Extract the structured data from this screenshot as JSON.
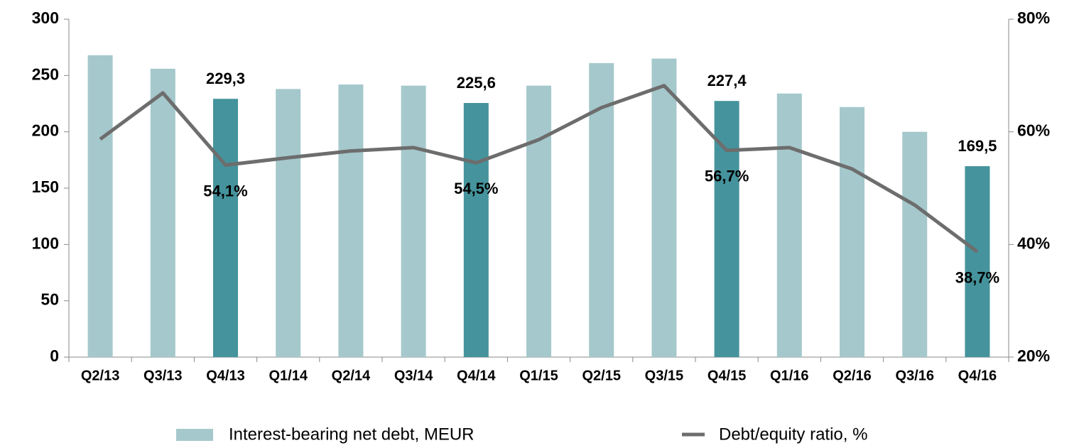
{
  "chart_data": {
    "type": "bar-line",
    "categories": [
      "Q2/13",
      "Q3/13",
      "Q4/13",
      "Q1/14",
      "Q2/14",
      "Q3/14",
      "Q4/14",
      "Q1/15",
      "Q2/15",
      "Q3/15",
      "Q4/15",
      "Q1/16",
      "Q2/16",
      "Q3/16",
      "Q4/16"
    ],
    "series": [
      {
        "name": "Interest-bearing net debt, MEUR",
        "type": "bar",
        "color": "#a5c8cc",
        "colors": [
          "#a5c8cc",
          "#a5c8cc",
          "#45939c",
          "#a5c8cc",
          "#a5c8cc",
          "#a5c8cc",
          "#45939c",
          "#a5c8cc",
          "#a5c8cc",
          "#a5c8cc",
          "#45939c",
          "#a5c8cc",
          "#a5c8cc",
          "#a5c8cc",
          "#45939c"
        ],
        "values": [
          268,
          256,
          229.3,
          238,
          242,
          241,
          225.6,
          241,
          261,
          265,
          227.4,
          234,
          222,
          200,
          169.5
        ],
        "value_labels": [
          null,
          null,
          "229,3",
          null,
          null,
          null,
          "225,6",
          null,
          null,
          null,
          "227,4",
          null,
          null,
          null,
          "169,5"
        ]
      },
      {
        "name": "Debt/equity ratio, %",
        "type": "line",
        "axis": "y2",
        "color": "#6d6d6d",
        "values": [
          58.7,
          66.9,
          54.1,
          55.4,
          56.6,
          57.2,
          54.5,
          58.6,
          64.3,
          68.2,
          56.7,
          57.2,
          53.4,
          47,
          38.7
        ],
        "value_labels": [
          null,
          null,
          "54,1%",
          null,
          null,
          null,
          "54,5%",
          null,
          null,
          null,
          "56,7%",
          null,
          null,
          null,
          "38,7%"
        ]
      }
    ],
    "ylim": [
      0,
      300
    ],
    "yticks": [
      0,
      50,
      100,
      150,
      200,
      250,
      300
    ],
    "y2lim": [
      20,
      80
    ],
    "y2ticks": [
      {
        "value": 20,
        "label": "20%"
      },
      {
        "value": 40,
        "label": "40%"
      },
      {
        "value": 60,
        "label": "60%"
      },
      {
        "value": 80,
        "label": "80%"
      }
    ],
    "legend": "bottom"
  }
}
